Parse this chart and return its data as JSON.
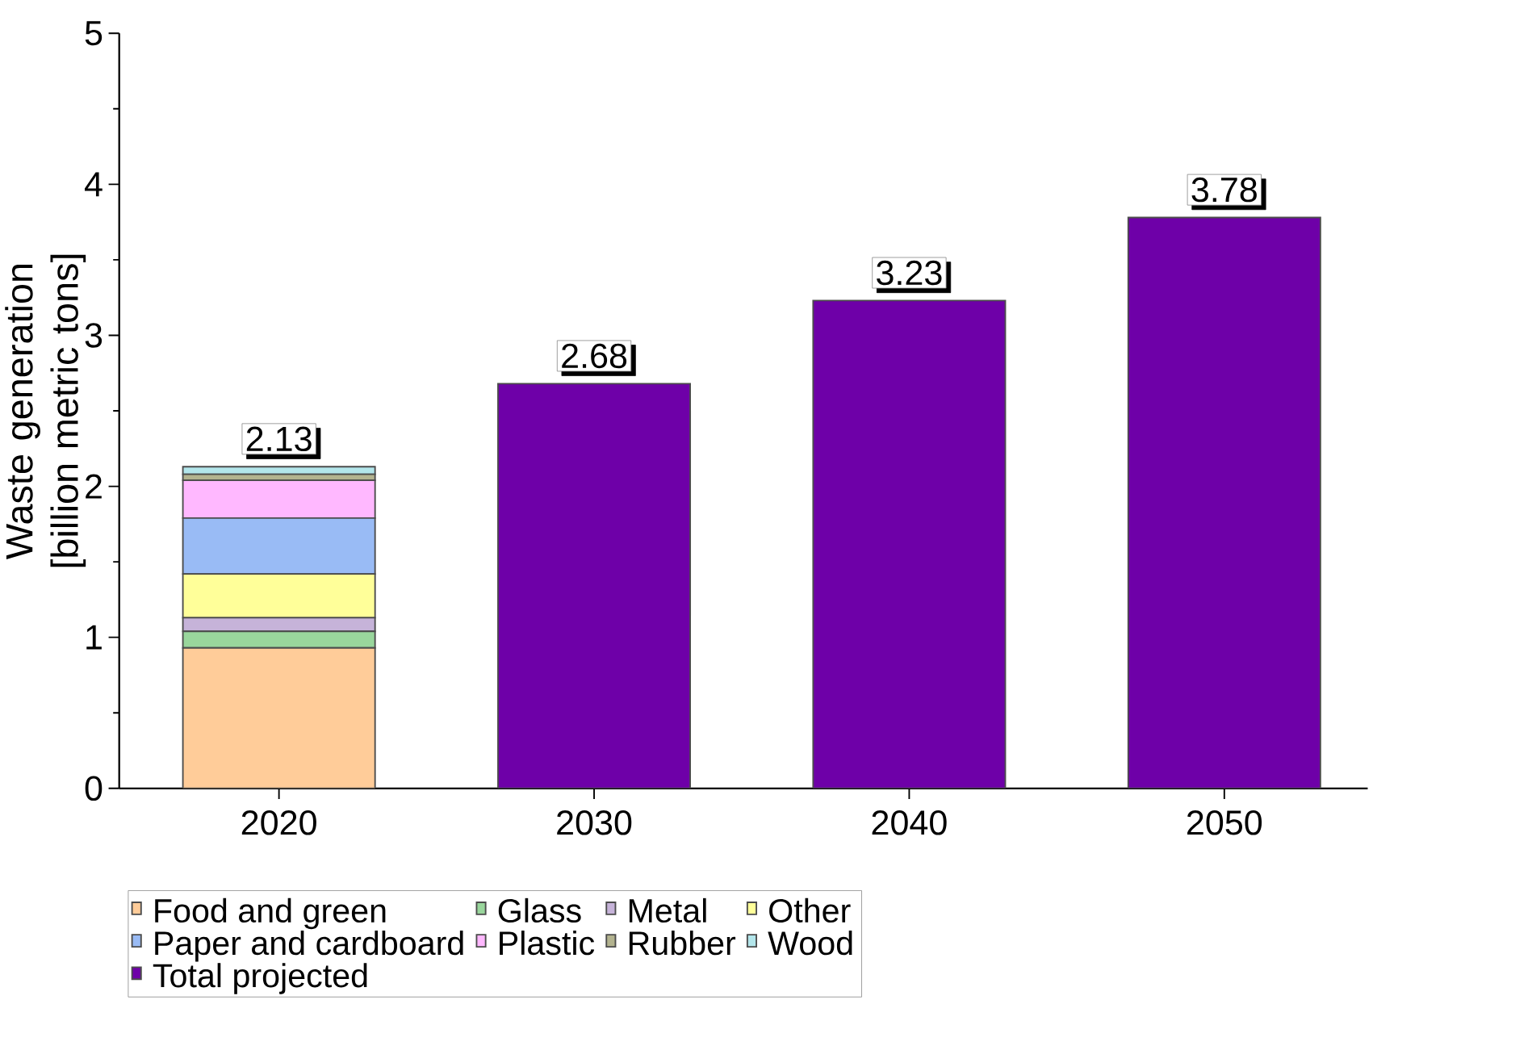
{
  "chart_data": {
    "type": "bar",
    "stacked": true,
    "ylabel": "Waste generation [billion metric tons]",
    "categories": [
      "2020",
      "2030",
      "2040",
      "2050"
    ],
    "series": [
      {
        "name": "Food and green",
        "color": "#ffcc99",
        "values": [
          0.93,
          null,
          null,
          null
        ]
      },
      {
        "name": "Glass",
        "color": "#99d69c",
        "values": [
          0.11,
          null,
          null,
          null
        ]
      },
      {
        "name": "Metal",
        "color": "#c6b3d9",
        "values": [
          0.09,
          null,
          null,
          null
        ]
      },
      {
        "name": "Other",
        "color": "#ffff99",
        "values": [
          0.29,
          null,
          null,
          null
        ]
      },
      {
        "name": "Paper and cardboard",
        "color": "#99bbf5",
        "values": [
          0.37,
          null,
          null,
          null
        ]
      },
      {
        "name": "Plastic",
        "color": "#ffb8ff",
        "values": [
          0.25,
          null,
          null,
          null
        ]
      },
      {
        "name": "Rubber",
        "color": "#b3b38f",
        "values": [
          0.04,
          null,
          null,
          null
        ]
      },
      {
        "name": "Wood",
        "color": "#b3e6eb",
        "values": [
          0.05,
          null,
          null,
          null
        ]
      },
      {
        "name": "Total projected",
        "color": "#6e00a8",
        "values": [
          null,
          2.68,
          3.23,
          3.78
        ]
      }
    ],
    "totals": [
      "2.13",
      "2.68",
      "3.23",
      "3.78"
    ],
    "ylim": [
      0,
      5
    ],
    "yticks": [
      0,
      1,
      2,
      3,
      4,
      5
    ],
    "legend": "bottom"
  }
}
